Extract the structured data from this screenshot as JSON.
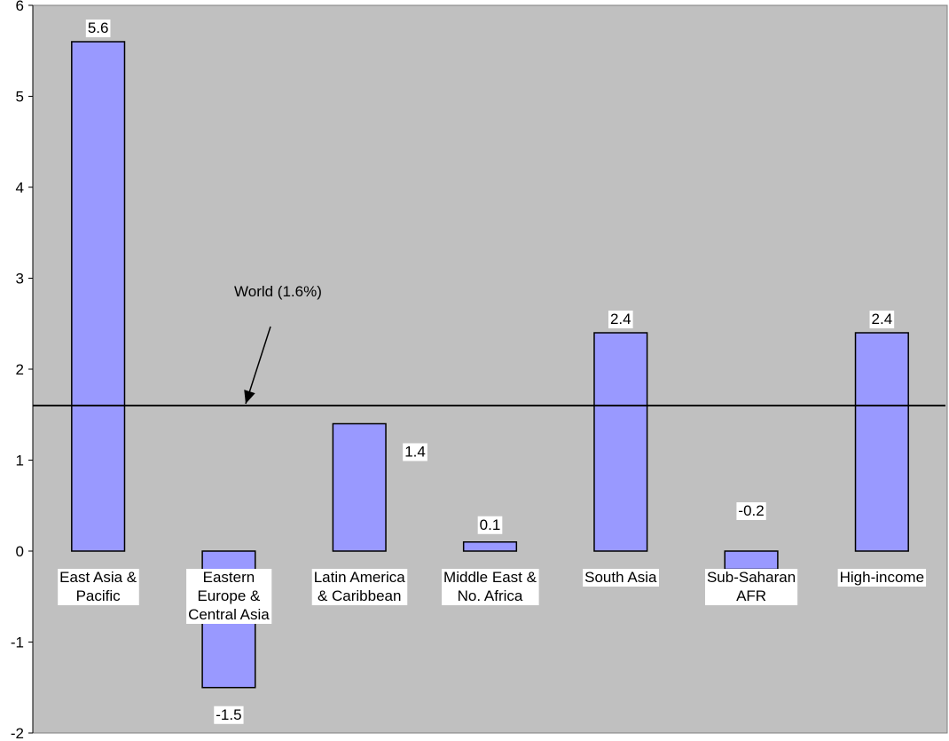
{
  "chart_data": {
    "type": "bar",
    "categories": [
      [
        "East Asia &",
        "Pacific"
      ],
      [
        "Eastern",
        "Europe &",
        "Central Asia"
      ],
      [
        "Latin America",
        "& Caribbean"
      ],
      [
        "Middle East &",
        "No. Africa"
      ],
      [
        "South Asia"
      ],
      [
        "Sub-Saharan",
        "AFR"
      ],
      [
        "High-income"
      ]
    ],
    "values": [
      5.6,
      -1.5,
      1.4,
      0.1,
      2.4,
      -0.2,
      2.4
    ],
    "value_labels": [
      "5.6",
      "-1.5",
      "1.4",
      "0.1",
      "2.4",
      "-0.2",
      "2.4"
    ],
    "ylim": [
      -2,
      6
    ],
    "yticks": [
      -2,
      -1,
      0,
      1,
      2,
      3,
      4,
      5,
      6
    ],
    "grid": false,
    "reference_line": {
      "value": 1.6,
      "label": "World (1.6%)"
    },
    "colors": {
      "plot_background": "#c0c0c0",
      "bar_fill": "#9999ff",
      "bar_stroke": "#000000",
      "label_background": "#ffffff"
    }
  }
}
